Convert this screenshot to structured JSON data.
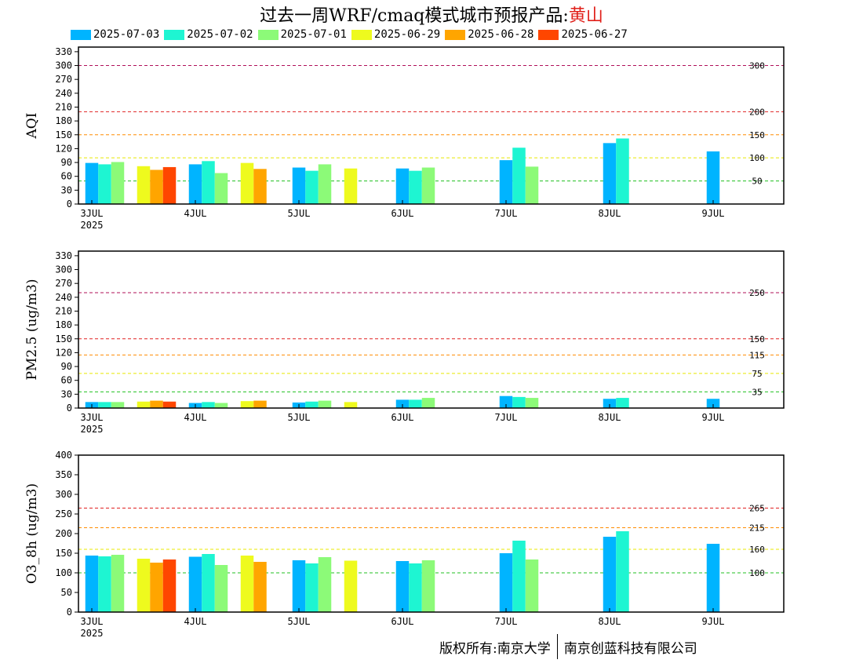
{
  "title": {
    "prefix": "过去一周WRF/cmaq模式城市预报产品:",
    "city": "黄山"
  },
  "legend": [
    {
      "label": "2025-07-03",
      "color": "#00b4ff"
    },
    {
      "label": "2025-07-02",
      "color": "#1ef5d2"
    },
    {
      "label": "2025-07-01",
      "color": "#8cfa78"
    },
    {
      "label": "2025-06-29",
      "color": "#eefa1e"
    },
    {
      "label": "2025-06-28",
      "color": "#ffa500"
    },
    {
      "label": "2025-06-27",
      "color": "#ff4600"
    }
  ],
  "footer": {
    "left": "版权所有:南京大学",
    "right": "南京创蓝科技有限公司"
  },
  "chart_data": [
    {
      "type": "bar",
      "ylabel": "AQI",
      "ylim": [
        0,
        340
      ],
      "yticks": [
        0,
        30,
        60,
        90,
        120,
        150,
        180,
        210,
        240,
        270,
        300,
        330
      ],
      "xticks": [
        "3JUL",
        "4JUL",
        "5JUL",
        "6JUL",
        "7JUL",
        "8JUL",
        "9JUL"
      ],
      "x_year": "2025",
      "thresholds": [
        {
          "value": 300,
          "label": "300",
          "color": "#b0105a"
        },
        {
          "value": 200,
          "label": "200",
          "color": "#e02020"
        },
        {
          "value": 150,
          "label": "150",
          "color": "#ff8c00"
        },
        {
          "value": 100,
          "label": "100",
          "color": "#e8e800"
        },
        {
          "value": 50,
          "label": "50",
          "color": "#20c020"
        }
      ],
      "series": [
        {
          "name": "2025-07-03",
          "values": [
            89,
            86,
            79,
            77,
            95,
            132,
            114
          ]
        },
        {
          "name": "2025-07-02",
          "values": [
            86,
            93,
            72,
            72,
            122,
            142,
            null
          ]
        },
        {
          "name": "2025-07-01",
          "values": [
            91,
            67,
            86,
            79,
            81,
            null,
            null
          ]
        },
        {
          "name": "2025-06-29",
          "values": [
            82,
            89,
            77,
            null,
            null,
            null,
            null
          ]
        },
        {
          "name": "2025-06-28",
          "values": [
            74,
            76,
            null,
            null,
            null,
            null,
            null
          ]
        },
        {
          "name": "2025-06-27",
          "values": [
            80,
            null,
            null,
            null,
            null,
            null,
            null
          ]
        }
      ]
    },
    {
      "type": "bar",
      "ylabel": "PM2.5 (ug/m3)",
      "ylim": [
        0,
        340
      ],
      "yticks": [
        0,
        30,
        60,
        90,
        120,
        150,
        180,
        210,
        240,
        270,
        300,
        330
      ],
      "xticks": [
        "3JUL",
        "4JUL",
        "5JUL",
        "6JUL",
        "7JUL",
        "8JUL",
        "9JUL"
      ],
      "x_year": "2025",
      "thresholds": [
        {
          "value": 250,
          "label": "250",
          "color": "#b0105a"
        },
        {
          "value": 150,
          "label": "150",
          "color": "#e02020"
        },
        {
          "value": 115,
          "label": "115",
          "color": "#ff8c00"
        },
        {
          "value": 75,
          "label": "75",
          "color": "#e8e800"
        },
        {
          "value": 35,
          "label": "35",
          "color": "#20c020"
        }
      ],
      "series": [
        {
          "name": "2025-07-03",
          "values": [
            13,
            11,
            12,
            18,
            26,
            20,
            20
          ]
        },
        {
          "name": "2025-07-02",
          "values": [
            13,
            13,
            14,
            18,
            24,
            22,
            null
          ]
        },
        {
          "name": "2025-07-01",
          "values": [
            13,
            11,
            16,
            22,
            22,
            null,
            null
          ]
        },
        {
          "name": "2025-06-29",
          "values": [
            14,
            15,
            13,
            null,
            null,
            null,
            null
          ]
        },
        {
          "name": "2025-06-28",
          "values": [
            16,
            16,
            null,
            null,
            null,
            null,
            null
          ]
        },
        {
          "name": "2025-06-27",
          "values": [
            14,
            null,
            null,
            null,
            null,
            null,
            null
          ]
        }
      ]
    },
    {
      "type": "bar",
      "ylabel": "O3_8h (ug/m3)",
      "ylim": [
        0,
        400
      ],
      "yticks": [
        0,
        50,
        100,
        150,
        200,
        250,
        300,
        350,
        400
      ],
      "xticks": [
        "3JUL",
        "4JUL",
        "5JUL",
        "6JUL",
        "7JUL",
        "8JUL",
        "9JUL"
      ],
      "x_year": "2025",
      "thresholds": [
        {
          "value": 265,
          "label": "265",
          "color": "#e02020"
        },
        {
          "value": 215,
          "label": "215",
          "color": "#ff8c00"
        },
        {
          "value": 160,
          "label": "160",
          "color": "#e8e800"
        },
        {
          "value": 100,
          "label": "100",
          "color": "#20c020"
        }
      ],
      "series": [
        {
          "name": "2025-07-03",
          "values": [
            144,
            141,
            132,
            130,
            150,
            192,
            174
          ]
        },
        {
          "name": "2025-07-02",
          "values": [
            142,
            148,
            124,
            124,
            182,
            206,
            null
          ]
        },
        {
          "name": "2025-07-01",
          "values": [
            146,
            120,
            140,
            132,
            134,
            null,
            null
          ]
        },
        {
          "name": "2025-06-29",
          "values": [
            136,
            144,
            131,
            null,
            null,
            null,
            null
          ]
        },
        {
          "name": "2025-06-28",
          "values": [
            126,
            128,
            null,
            null,
            null,
            null,
            null
          ]
        },
        {
          "name": "2025-06-27",
          "values": [
            134,
            null,
            null,
            null,
            null,
            null,
            null
          ]
        }
      ]
    }
  ]
}
